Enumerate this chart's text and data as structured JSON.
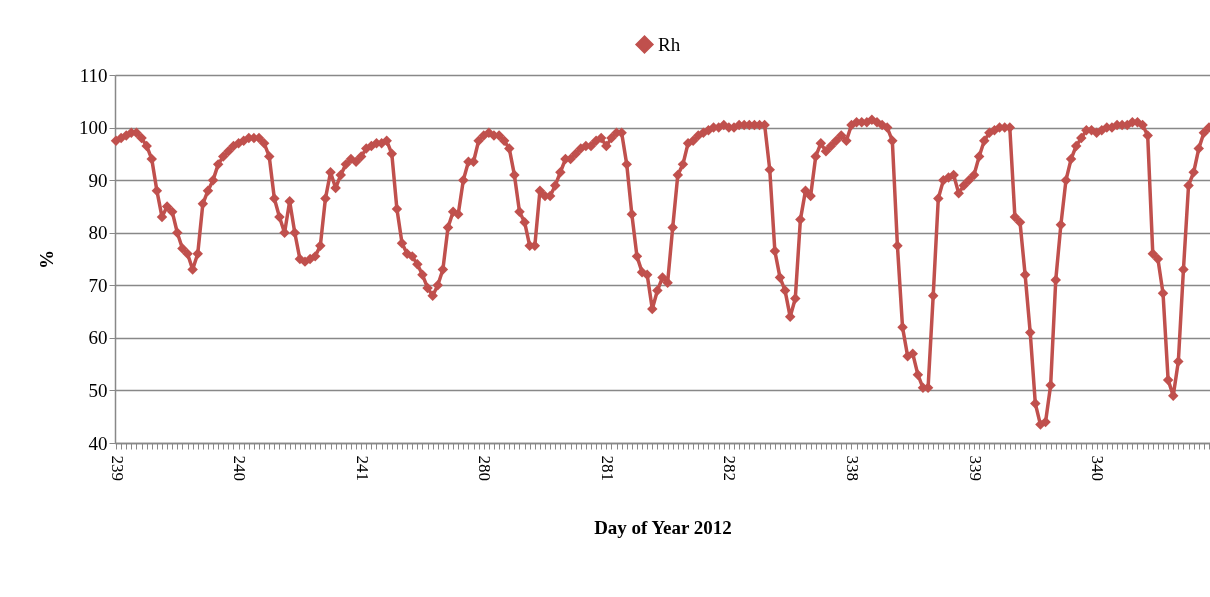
{
  "chart_data": {
    "type": "line",
    "xlabel": "Day of Year 2012",
    "ylabel": "%",
    "categories": [
      "239",
      null,
      null,
      null,
      null,
      null,
      null,
      null,
      null,
      null,
      null,
      null,
      null,
      null,
      null,
      null,
      null,
      null,
      null,
      null,
      null,
      null,
      null,
      null,
      "240",
      null,
      null,
      null,
      null,
      null,
      null,
      null,
      null,
      null,
      null,
      null,
      null,
      null,
      null,
      null,
      null,
      null,
      null,
      null,
      null,
      null,
      null,
      null,
      "241",
      null,
      null,
      null,
      null,
      null,
      null,
      null,
      null,
      null,
      null,
      null,
      null,
      null,
      null,
      null,
      null,
      null,
      null,
      null,
      null,
      null,
      null,
      null,
      "280",
      null,
      null,
      null,
      null,
      null,
      null,
      null,
      null,
      null,
      null,
      null,
      null,
      null,
      null,
      null,
      null,
      null,
      null,
      null,
      null,
      null,
      null,
      null,
      "281",
      null,
      null,
      null,
      null,
      null,
      null,
      null,
      null,
      null,
      null,
      null,
      null,
      null,
      null,
      null,
      null,
      null,
      null,
      null,
      null,
      null,
      null,
      null,
      "282",
      null,
      null,
      null,
      null,
      null,
      null,
      null,
      null,
      null,
      null,
      null,
      null,
      null,
      null,
      null,
      null,
      null,
      null,
      null,
      null,
      null,
      null,
      null,
      "338",
      null,
      null,
      null,
      null,
      null,
      null,
      null,
      null,
      null,
      null,
      null,
      null,
      null,
      null,
      null,
      null,
      null,
      null,
      null,
      null,
      null,
      null,
      null,
      "339",
      null,
      null,
      null,
      null,
      null,
      null,
      null,
      null,
      null,
      null,
      null,
      null,
      null,
      null,
      null,
      null,
      null,
      null,
      null,
      null,
      null,
      null,
      null,
      "340",
      null,
      null,
      null,
      null,
      null,
      null,
      null,
      null,
      null,
      null,
      null,
      null,
      null,
      null,
      null,
      null,
      null,
      null,
      null,
      null,
      null,
      null
    ],
    "series": [
      {
        "name": "Rh",
        "color": "#c0504d",
        "values": [
          97.5,
          98,
          98.5,
          99,
          99,
          98,
          96.5,
          94,
          88,
          83,
          85,
          84,
          80,
          77,
          76,
          73,
          76,
          85.5,
          88,
          90,
          93,
          94.5,
          95.5,
          96.5,
          97,
          97.5,
          98,
          98,
          98,
          97,
          94.5,
          86.5,
          83,
          80,
          86,
          80,
          75,
          74.5,
          75,
          75.5,
          77.5,
          86.5,
          91.5,
          88.5,
          91,
          93,
          94,
          93.5,
          94.5,
          96,
          96.5,
          97,
          97,
          97.5,
          95,
          84.5,
          78,
          76,
          75.5,
          74,
          72,
          69.5,
          68,
          70,
          73,
          81,
          84,
          83.5,
          90,
          93.5,
          93.5,
          97.5,
          98.5,
          99,
          98.5,
          98.5,
          97.5,
          96,
          91,
          84,
          82,
          77.5,
          77.5,
          88,
          87,
          87,
          89,
          91.5,
          94,
          94,
          95,
          96,
          96.5,
          96.5,
          97.5,
          98,
          96.5,
          98,
          99,
          99,
          93,
          83.5,
          75.5,
          72.5,
          72,
          65.5,
          69,
          71.5,
          70.5,
          81,
          91,
          93,
          97,
          97.5,
          98.5,
          99,
          99.5,
          100,
          100,
          100.5,
          100,
          100,
          100.5,
          100.5,
          100.5,
          100.5,
          100.5,
          100.5,
          92,
          76.5,
          71.5,
          69,
          64,
          67.5,
          82.5,
          88,
          87,
          94.5,
          97,
          95.5,
          96.5,
          97.5,
          98.5,
          97.5,
          100.5,
          101,
          101,
          101,
          101.5,
          101,
          100.5,
          100,
          97.5,
          77.5,
          62,
          56.5,
          57,
          53,
          50.5,
          50.5,
          68,
          86.5,
          90,
          90.5,
          91,
          87.5,
          89,
          90,
          91,
          94.5,
          97.5,
          99,
          99.5,
          100,
          100,
          100,
          83,
          82,
          72,
          61,
          47.5,
          43.5,
          44,
          51,
          71,
          81.5,
          90,
          94,
          96.5,
          98,
          99.5,
          99.5,
          99,
          99.5,
          100,
          100,
          100.5,
          100.5,
          100.5,
          101,
          101,
          100.5,
          98.5,
          76,
          75,
          68.5,
          52,
          49,
          55.5,
          73,
          89,
          91.5,
          96,
          99,
          100
        ]
      }
    ],
    "ylim": [
      40,
      110
    ],
    "yticks": [
      40,
      50,
      60,
      70,
      80,
      90,
      100,
      110
    ],
    "grid": "y",
    "legend": "top",
    "marker": "diamond",
    "line_style": "solid"
  }
}
